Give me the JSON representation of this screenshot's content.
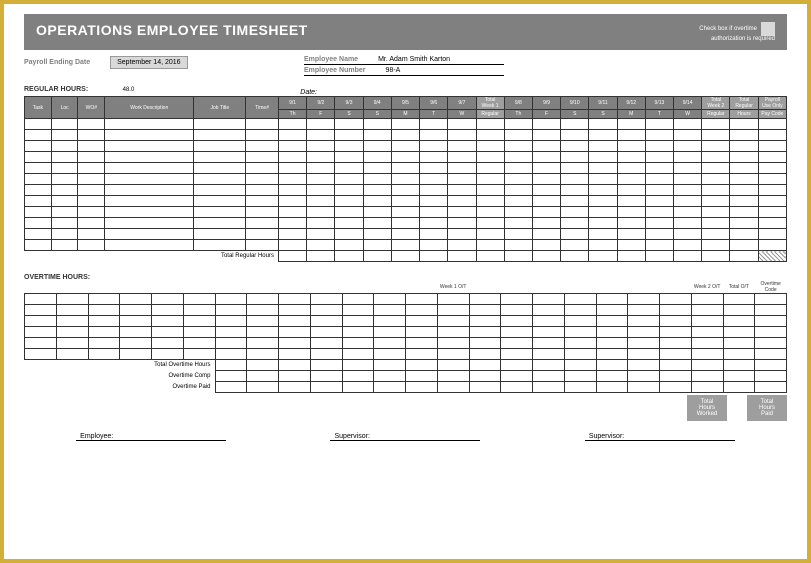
{
  "header": {
    "title": "OPERATIONS EMPLOYEE TIMESHEET",
    "checkbox_text": "Check box if overtime",
    "auth_text": "authorization is required"
  },
  "info": {
    "payroll_label": "Payroll Ending Date",
    "payroll_date": "September 14, 2016",
    "emp_name_label": "Employee Name",
    "emp_name": "Mr. Adam Smith Karton",
    "emp_num_label": "Employee Number",
    "emp_num": "98-A",
    "date_label": "Date:"
  },
  "regular": {
    "label": "REGULAR HOURS:",
    "value_label": "48.0",
    "cols_left": [
      "Task",
      "Loc",
      "WO#",
      "Work Description",
      "Job Title",
      "Time#"
    ],
    "days1": [
      "9/1",
      "9/2",
      "9/3",
      "9/4",
      "9/5",
      "9/6",
      "9/7"
    ],
    "dow1": [
      "Th",
      "F",
      "S",
      "S",
      "M",
      "T",
      "W"
    ],
    "total_w1_top": "Total",
    "total_w1_mid": "Week 1",
    "total_w1_bot": "Regular",
    "days2": [
      "9/8",
      "9/9",
      "9/10",
      "9/11",
      "9/12",
      "9/13",
      "9/14"
    ],
    "dow2": [
      "Th",
      "F",
      "S",
      "S",
      "M",
      "T",
      "W"
    ],
    "total_w2_top": "Total",
    "total_w2_mid": "Week 2",
    "total_w2_bot": "Regular",
    "total_reg_top": "Total",
    "total_reg_mid": "Regular",
    "total_reg_bot": "Hours",
    "payroll_top": "Payroll",
    "payroll_mid": "Use Only",
    "payroll_bot": "Pay Code",
    "total_reg_hours_label": "Total Regular Hours"
  },
  "overtime": {
    "label": "OVERTIME HOURS:",
    "w1_ot": "Week 1 O/T",
    "w2_ot": "Week 2 O/T",
    "total_ot": "Total O/T",
    "ot_code": "Overtime Code",
    "total_ot_hours": "Total Overtime Hours",
    "ot_comp": "Overtime Comp",
    "ot_paid": "Overtime Paid"
  },
  "totals": {
    "worked": "Total Hours Worked",
    "paid": "Total Hours Paid"
  },
  "signatures": {
    "employee": "Employee:",
    "supervisor": "Supervisor:",
    "supervisor2": "Supervisor:"
  },
  "rows_regular": 12,
  "rows_overtime": 6
}
